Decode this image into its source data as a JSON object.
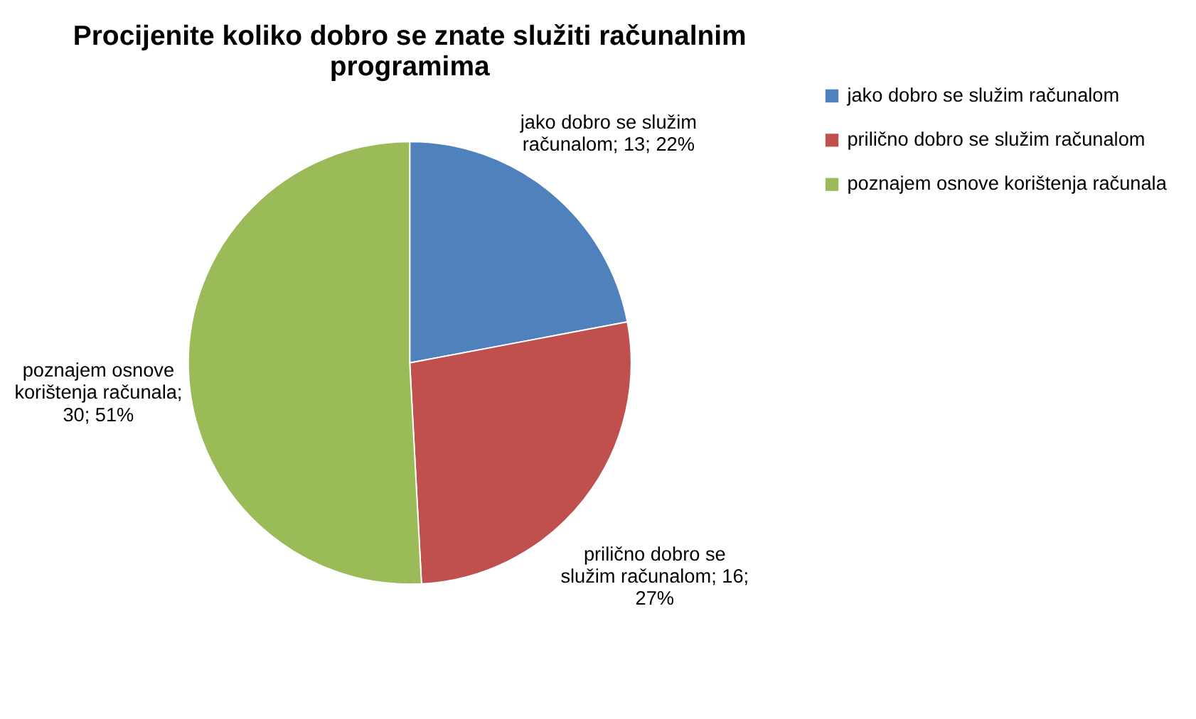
{
  "chart_data": {
    "type": "pie",
    "title": "Procijenite koliko dobro se znate služiti računalnim programima",
    "categories": [
      "jako dobro se služim računalom",
      "prilično dobro se služim računalom",
      "poznajem osnove korištenja računala"
    ],
    "values": [
      13,
      16,
      30
    ],
    "colors": [
      "#4f81bd",
      "#c0504d",
      "#9bbb59"
    ],
    "value_labels": [
      "jako dobro se služim računalom; 13; 22%",
      "prilično dobro se služim računalom; 16; 27%",
      "poznajem osnove korištenja računala; 30; 51%"
    ],
    "legend": "right"
  }
}
